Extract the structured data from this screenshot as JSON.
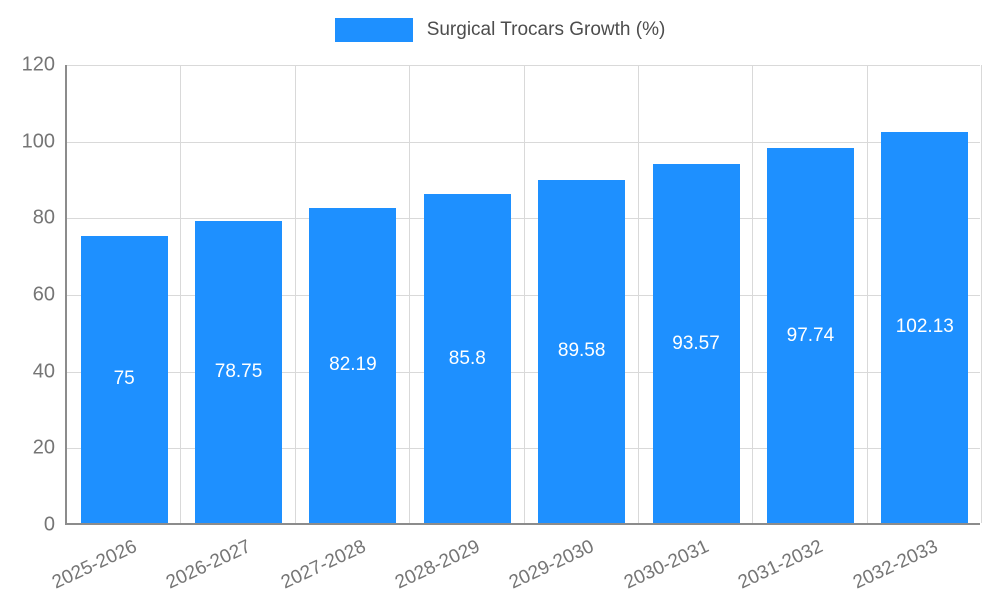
{
  "chart_data": {
    "type": "bar",
    "title": "",
    "legend": {
      "label": "Surgical Trocars Growth (%)",
      "position": "top"
    },
    "categories": [
      "2025-2026",
      "2026-2027",
      "2027-2028",
      "2028-2029",
      "2029-2030",
      "2030-2031",
      "2031-2032",
      "2032-2033"
    ],
    "values": [
      75,
      78.75,
      82.19,
      85.8,
      89.58,
      93.57,
      97.74,
      102.13
    ],
    "value_labels": [
      "75",
      "78.75",
      "82.19",
      "85.8",
      "89.58",
      "93.57",
      "97.74",
      "102.13"
    ],
    "xlabel": "",
    "ylabel": "",
    "ylim": [
      0,
      120
    ],
    "y_ticks": [
      0,
      20,
      40,
      60,
      80,
      100,
      120
    ],
    "grid": "both",
    "bar_color": "#1e90ff",
    "label_color": "#ffffff"
  }
}
